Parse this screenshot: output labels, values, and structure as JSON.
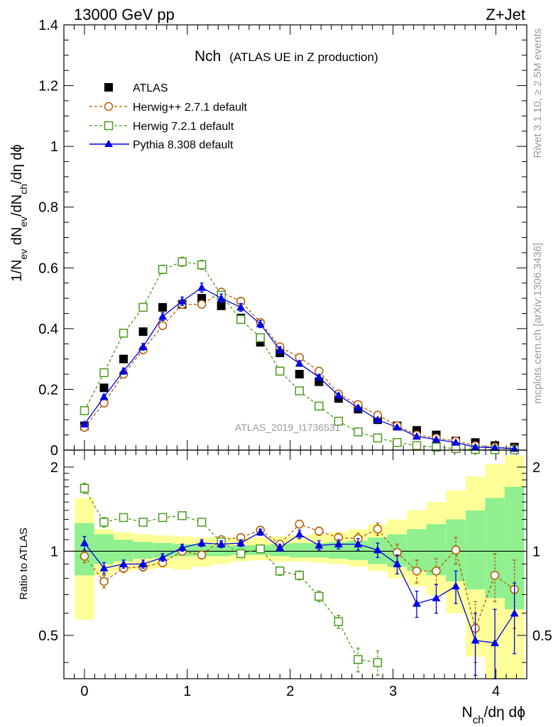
{
  "header": {
    "energy_label": "13000 GeV pp",
    "process_label": "Z+Jet"
  },
  "side_text": {
    "rivet": "Rivet 3.1.10, ≥ 2.5M events",
    "mcplots": "mcplots.cern.ch [arXiv:1306.3436]"
  },
  "chart_data": {
    "type": "scatter",
    "title_main": "Nch",
    "title_sub": "(ATLAS UE in Z production)",
    "analysis_label": "ATLAS_2019_I1736531",
    "xlabel": "N_ch/dη dϕ",
    "ylabel_main": "1/N_ev dN_ev/dN_ch/dη dϕ",
    "ylabel_ratio": "Ratio to ATLAS",
    "xlim": [
      -0.2,
      4.3
    ],
    "ylim_main": [
      0,
      1.4
    ],
    "ylim_ratio": [
      0.35,
      2.3
    ],
    "ratio_scale": "log",
    "x_ticks": [
      "0",
      "1",
      "2",
      "3",
      "4"
    ],
    "y_ticks_main": [
      "0",
      "0.2",
      "0.4",
      "0.6",
      "0.8",
      "1",
      "1.2",
      "1.4"
    ],
    "y_ticks_ratio": [
      "0.5",
      "1",
      "2"
    ],
    "legend_position": "top-left",
    "x": [
      0.0,
      0.19,
      0.38,
      0.57,
      0.76,
      0.95,
      1.14,
      1.33,
      1.52,
      1.71,
      1.9,
      2.09,
      2.28,
      2.47,
      2.66,
      2.85,
      3.04,
      3.23,
      3.42,
      3.61,
      3.8,
      3.99,
      4.18
    ],
    "series": [
      {
        "name": "ATLAS",
        "marker": "filled-square",
        "color": "#000000",
        "values": [
          0.08,
          0.205,
          0.3,
          0.39,
          0.47,
          0.48,
          0.5,
          0.475,
          0.435,
          0.355,
          0.32,
          0.25,
          0.225,
          0.17,
          0.135,
          0.1,
          0.08,
          0.065,
          0.05,
          0.03,
          0.025,
          0.015,
          0.01
        ]
      },
      {
        "name": "Herwig++ 2.7.1 default",
        "marker": "open-circle",
        "line": "dashed",
        "color": "#b35a00",
        "values": [
          0.075,
          0.155,
          0.25,
          0.33,
          0.41,
          0.48,
          0.48,
          0.52,
          0.49,
          0.42,
          0.34,
          0.305,
          0.26,
          0.185,
          0.15,
          0.115,
          0.08,
          0.05,
          0.04,
          0.03,
          0.015,
          0.01,
          0.005
        ],
        "errors": [
          0.005,
          0.006,
          0.008,
          0.009,
          0.01,
          0.011,
          0.011,
          0.011,
          0.01,
          0.009,
          0.008,
          0.007,
          0.006,
          0.005,
          0.004,
          0.004,
          0.003,
          0.003,
          0.002,
          0.002,
          0.002,
          0.001,
          0.001
        ],
        "ratio": [
          0.96,
          0.78,
          0.87,
          0.88,
          0.91,
          1.0,
          0.97,
          1.1,
          1.12,
          1.19,
          1.06,
          1.25,
          1.18,
          1.12,
          1.11,
          1.2,
          0.99,
          0.85,
          0.85,
          1.01,
          0.53,
          0.82,
          0.73
        ],
        "ratio_errors": [
          0.05,
          0.04,
          0.03,
          0.03,
          0.03,
          0.03,
          0.03,
          0.03,
          0.03,
          0.03,
          0.03,
          0.04,
          0.04,
          0.04,
          0.05,
          0.06,
          0.07,
          0.08,
          0.09,
          0.11,
          0.13,
          0.16,
          0.2
        ]
      },
      {
        "name": "Herwig 7.2.1 default",
        "marker": "open-square",
        "line": "dashed",
        "color": "#4c9a1e",
        "values": [
          0.13,
          0.255,
          0.385,
          0.47,
          0.595,
          0.62,
          0.61,
          0.51,
          0.43,
          0.37,
          0.26,
          0.195,
          0.145,
          0.095,
          0.06,
          0.04,
          0.025,
          0.015,
          0.01,
          0.005,
          0.002,
          0.001,
          0.001
        ],
        "errors": [
          0.008,
          0.01,
          0.012,
          0.013,
          0.014,
          0.015,
          0.015,
          0.013,
          0.012,
          0.011,
          0.009,
          0.008,
          0.007,
          0.006,
          0.005,
          0.004,
          0.003,
          0.002,
          0.002,
          0.001,
          0.001,
          0.001,
          0.001
        ],
        "ratio": [
          1.68,
          1.27,
          1.32,
          1.27,
          1.32,
          1.34,
          1.27,
          1.08,
          0.98,
          1.02,
          0.85,
          0.82,
          0.69,
          0.56,
          0.41,
          0.4
        ],
        "ratio_errors": [
          0.07,
          0.05,
          0.04,
          0.03,
          0.03,
          0.03,
          0.03,
          0.03,
          0.02,
          0.02,
          0.03,
          0.03,
          0.03,
          0.03,
          0.04,
          0.04
        ]
      },
      {
        "name": "Pythia 8.308 default",
        "marker": "filled-triangle",
        "line": "solid",
        "color": "#0000e6",
        "values": [
          0.085,
          0.175,
          0.26,
          0.34,
          0.44,
          0.49,
          0.535,
          0.5,
          0.47,
          0.415,
          0.33,
          0.285,
          0.24,
          0.18,
          0.14,
          0.1,
          0.075,
          0.045,
          0.035,
          0.025,
          0.01,
          0.008,
          0.005
        ],
        "errors": [
          0.006,
          0.008,
          0.01,
          0.011,
          0.013,
          0.014,
          0.015,
          0.014,
          0.013,
          0.012,
          0.01,
          0.009,
          0.008,
          0.007,
          0.006,
          0.005,
          0.004,
          0.003,
          0.003,
          0.002,
          0.002,
          0.001,
          0.001
        ],
        "ratio": [
          1.07,
          0.87,
          0.9,
          0.9,
          0.95,
          1.03,
          1.07,
          1.06,
          1.07,
          1.17,
          1.03,
          1.15,
          1.05,
          1.06,
          1.06,
          1.01,
          0.9,
          0.65,
          0.68,
          0.75,
          0.48,
          0.47,
          0.6
        ],
        "ratio_errors": [
          0.06,
          0.04,
          0.03,
          0.03,
          0.03,
          0.03,
          0.03,
          0.03,
          0.03,
          0.03,
          0.03,
          0.04,
          0.04,
          0.04,
          0.05,
          0.06,
          0.07,
          0.07,
          0.08,
          0.1,
          0.12,
          0.15,
          0.17
        ]
      }
    ],
    "ratio_bands": {
      "inner_color": "#90f090",
      "outer_color": "#ffff99",
      "inner_low": [
        0.82,
        0.9,
        0.92,
        0.94,
        0.95,
        0.96,
        0.96,
        0.96,
        0.97,
        0.97,
        0.96,
        0.95,
        0.95,
        0.94,
        0.93,
        0.9,
        0.88,
        0.85,
        0.82,
        0.78,
        0.73,
        0.68,
        0.62
      ],
      "inner_high": [
        1.26,
        1.15,
        1.1,
        1.08,
        1.07,
        1.06,
        1.06,
        1.05,
        1.05,
        1.05,
        1.06,
        1.07,
        1.07,
        1.08,
        1.09,
        1.12,
        1.15,
        1.2,
        1.25,
        1.3,
        1.4,
        1.55,
        1.7
      ],
      "outer_low": [
        0.57,
        0.82,
        0.85,
        0.86,
        0.87,
        0.86,
        0.88,
        0.9,
        0.92,
        0.93,
        0.92,
        0.92,
        0.91,
        0.9,
        0.88,
        0.85,
        0.8,
        0.75,
        0.7,
        0.6,
        0.42,
        0.3,
        0.3
      ],
      "outer_high": [
        1.55,
        1.2,
        1.17,
        1.15,
        1.14,
        1.13,
        1.12,
        1.12,
        1.12,
        1.12,
        1.13,
        1.14,
        1.15,
        1.17,
        1.2,
        1.25,
        1.3,
        1.4,
        1.5,
        1.65,
        1.85,
        2.05,
        2.2
      ]
    }
  }
}
